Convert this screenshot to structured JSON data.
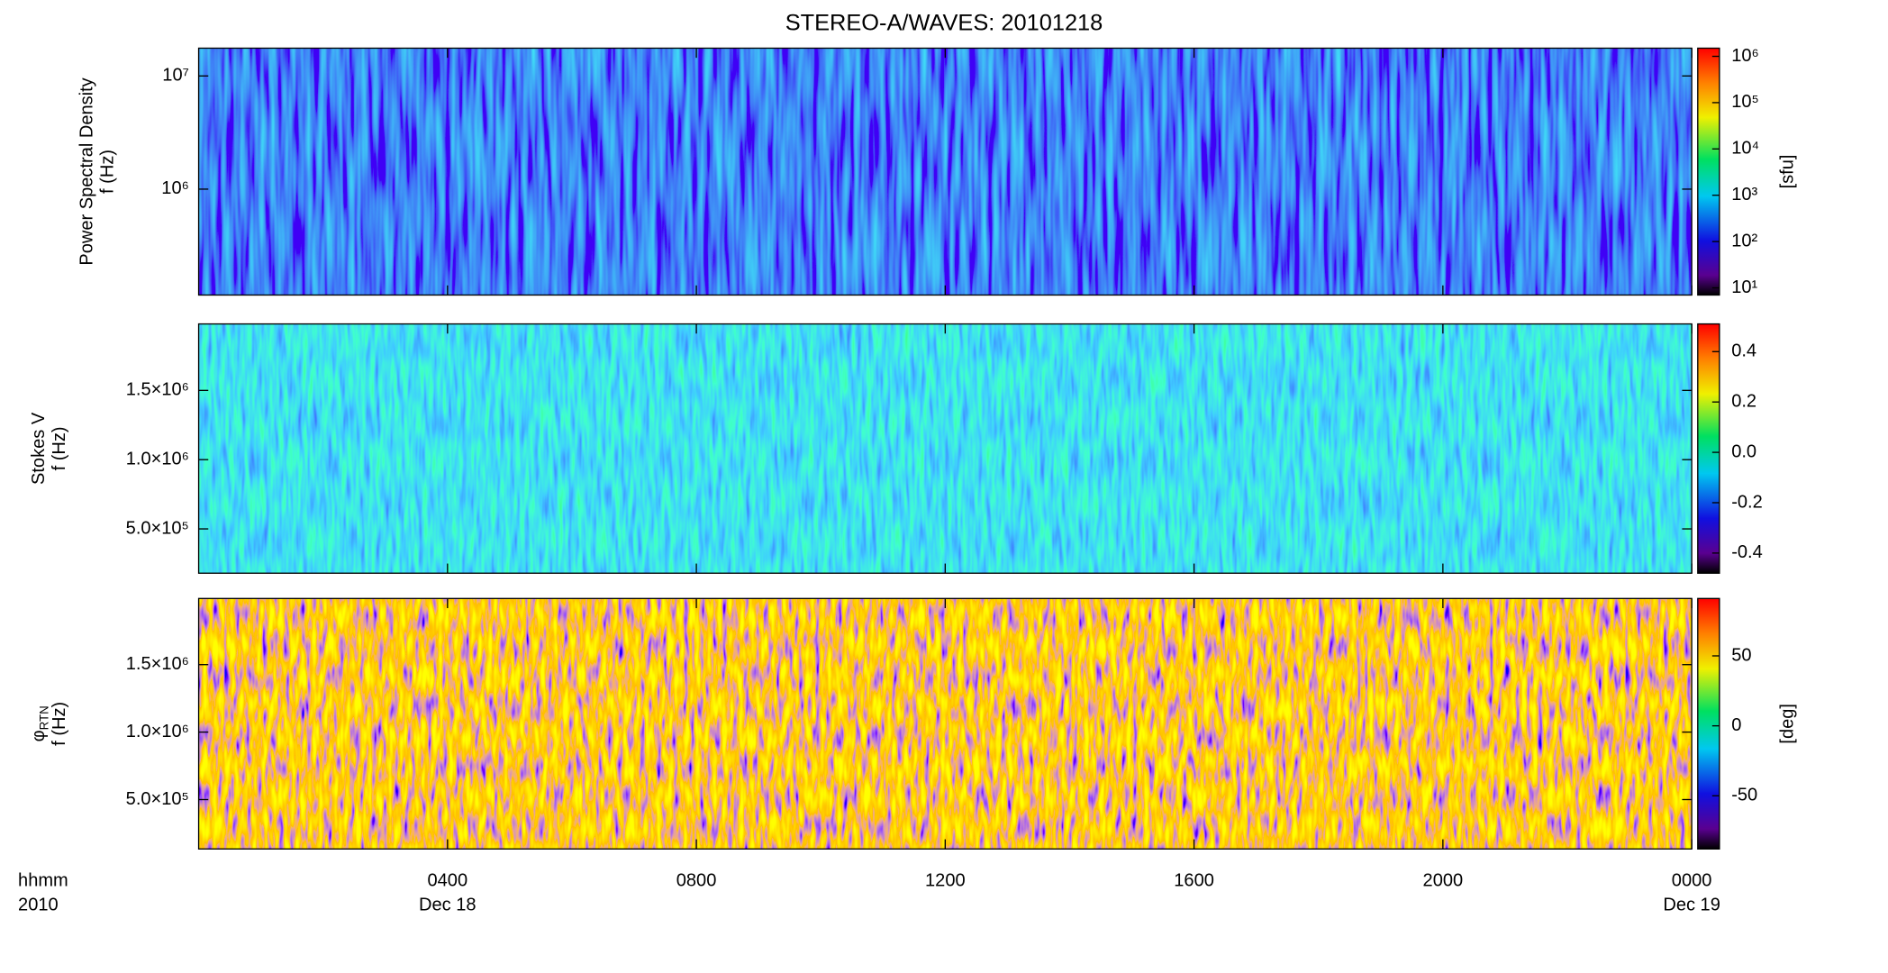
{
  "title": "STEREO-A/WAVES: 20101218",
  "xaxis": {
    "xlim": [
      0,
      24
    ],
    "xticks": [
      {
        "value": 4,
        "label": "0400"
      },
      {
        "value": 8,
        "label": "0800"
      },
      {
        "value": 12,
        "label": "1200"
      },
      {
        "value": 16,
        "label": "1600"
      },
      {
        "value": 20,
        "label": "2000"
      },
      {
        "value": 24,
        "label": "0000"
      }
    ],
    "dates": [
      "Dec 18",
      null,
      null,
      null,
      null,
      "Dec 19"
    ],
    "labels": [
      "hhmm",
      "2010"
    ]
  },
  "chart_data": [
    {
      "type": "spectrogram",
      "ylabel": [
        "Power Spectral Density",
        "f (Hz)"
      ],
      "log_y": true,
      "ylim": [
        116000,
        17600000
      ],
      "yticks": [
        {
          "value": 1000000,
          "label": "10⁶"
        },
        {
          "value": 10000000,
          "label": "10⁷"
        }
      ],
      "colorbar": {
        "log": true,
        "lim": [
          7,
          1500000
        ],
        "label": "[sfu]",
        "ticks": [
          {
            "value": 10,
            "label": "10¹"
          },
          {
            "value": 100,
            "label": "10²"
          },
          {
            "value": 1000,
            "label": "10³"
          },
          {
            "value": 10000,
            "label": "10⁴"
          },
          {
            "value": 100000,
            "label": "10⁵"
          },
          {
            "value": 1000000,
            "label": "10⁶"
          }
        ]
      }
    },
    {
      "type": "spectrogram",
      "ylabel": [
        "Stokes V",
        "f (Hz)"
      ],
      "log_y": false,
      "ylim": [
        180000,
        1980000
      ],
      "yticks": [
        {
          "value": 500000,
          "label": "5.0×10⁵"
        },
        {
          "value": 1000000,
          "label": "1.0×10⁶"
        },
        {
          "value": 1500000,
          "label": "1.5×10⁶"
        }
      ],
      "colorbar": {
        "log": false,
        "lim": [
          -0.48,
          0.51
        ],
        "ticks": [
          -0.4,
          -0.2,
          {
            "value": 0,
            "label": "0.0"
          },
          0.2,
          0.4
        ]
      }
    },
    {
      "type": "spectrogram",
      "ylabel": [
        "φ",
        "f (Hz)"
      ],
      "ylabel_sub": "RTN",
      "log_y": false,
      "ylim": [
        134000,
        1990000
      ],
      "yticks": [
        {
          "value": 500000,
          "label": "5.0×10⁵"
        },
        {
          "value": 1000000,
          "label": "1.0×10⁶"
        },
        {
          "value": 1500000,
          "label": "1.5×10⁶"
        }
      ],
      "colorbar": {
        "log": false,
        "lim": [
          -88,
          91
        ],
        "label": "[deg]",
        "ticks": [
          -50,
          0,
          50
        ]
      }
    }
  ]
}
